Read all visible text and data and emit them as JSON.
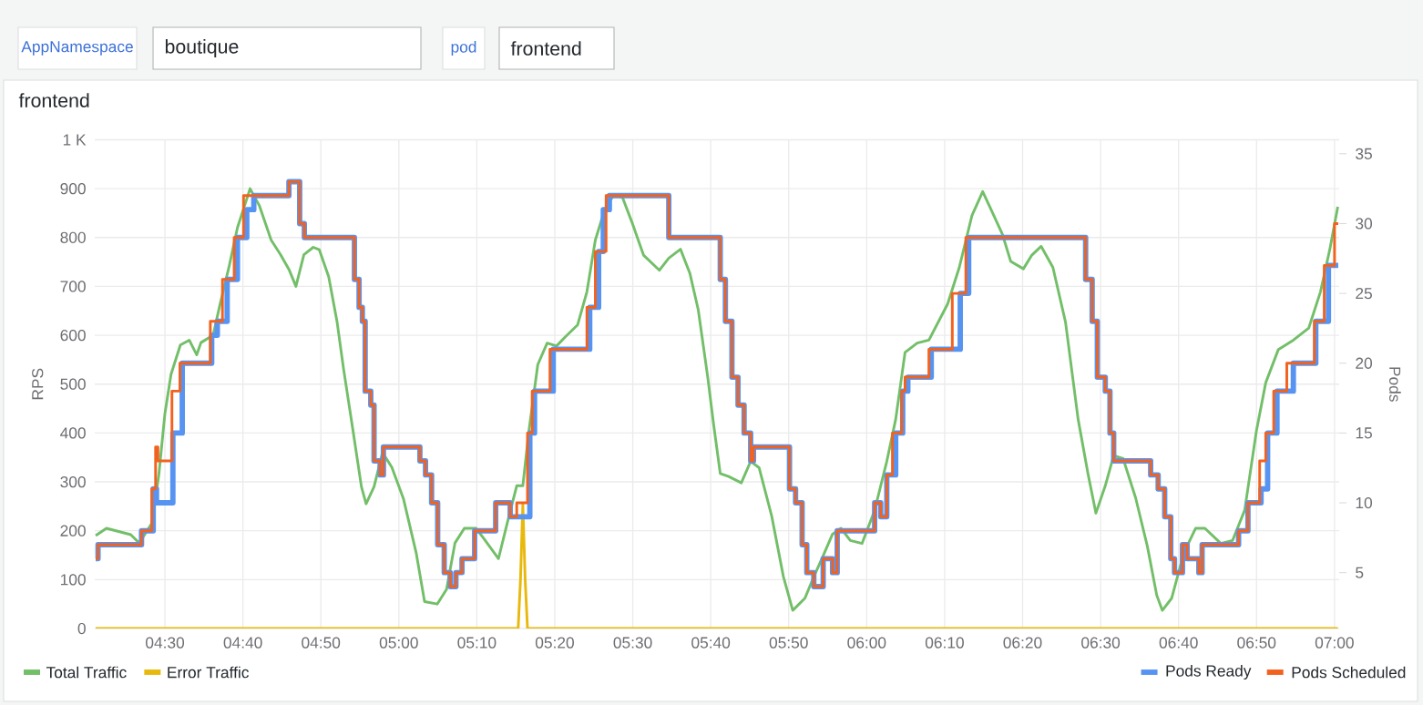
{
  "chart_data": {
    "type": "line",
    "title": "frontend",
    "ylabel": "RPS",
    "y2label": "Pods",
    "annotations": [
      "AppNamespace",
      "boutique",
      "pod",
      "frontend"
    ],
    "xlim": [
      4.35,
      7.01
    ],
    "xticks": [
      {
        "value": 4.5,
        "label": "04:30"
      },
      {
        "value": 4.6667,
        "label": "04:40"
      },
      {
        "value": 4.8333,
        "label": "04:50"
      },
      {
        "value": 5,
        "label": "05:00"
      },
      {
        "value": 5.1667,
        "label": "05:10"
      },
      {
        "value": 5.3333,
        "label": "05:20"
      },
      {
        "value": 5.5,
        "label": "05:30"
      },
      {
        "value": 5.6667,
        "label": "05:40"
      },
      {
        "value": 5.8333,
        "label": "05:50"
      },
      {
        "value": 6,
        "label": "06:00"
      },
      {
        "value": 6.1667,
        "label": "06:10"
      },
      {
        "value": 6.3333,
        "label": "06:20"
      },
      {
        "value": 6.5,
        "label": "06:30"
      },
      {
        "value": 6.6667,
        "label": "06:40"
      },
      {
        "value": 6.8333,
        "label": "06:50"
      },
      {
        "value": 7,
        "label": "07:00"
      }
    ],
    "ylim": [
      0,
      1000
    ],
    "yticks": [
      0,
      100,
      200,
      300,
      400,
      500,
      600,
      700,
      800,
      900,
      {
        "value": 1000,
        "label": "1 K"
      }
    ],
    "y2lim": [
      1,
      36
    ],
    "y2ticks": [
      5,
      10,
      15,
      20,
      25,
      30,
      35
    ],
    "grid": true,
    "legend": "bottom",
    "series": [
      {
        "name": "Total Traffic",
        "color": "#73bf69",
        "x": [
          4.352,
          4.375,
          4.427,
          4.445,
          4.472,
          4.487,
          4.5,
          4.513,
          4.533,
          4.552,
          4.568,
          4.577,
          4.603,
          4.617,
          4.637,
          4.655,
          4.682,
          4.702,
          4.727,
          4.747,
          4.765,
          4.78,
          4.797,
          4.817,
          4.83,
          4.85,
          4.868,
          4.882,
          4.902,
          4.92,
          4.93,
          4.947,
          4.965,
          4.985,
          5.01,
          5.037,
          5.055,
          5.082,
          5.102,
          5.12,
          5.14,
          5.165,
          5.18,
          5.213,
          5.232,
          5.252,
          5.265,
          5.278,
          5.297,
          5.317,
          5.337,
          5.355,
          5.382,
          5.402,
          5.42,
          5.44,
          5.46,
          5.478,
          5.498,
          5.523,
          5.557,
          5.577,
          5.602,
          5.622,
          5.64,
          5.66,
          5.673,
          5.687,
          5.705,
          5.732,
          5.752,
          5.77,
          5.797,
          5.822,
          5.842,
          5.868,
          5.887,
          5.907,
          5.927,
          5.945,
          5.965,
          5.99,
          6.017,
          6.043,
          6.062,
          6.082,
          6.108,
          6.133,
          6.173,
          6.198,
          6.225,
          6.248,
          6.263,
          6.29,
          6.308,
          6.335,
          6.353,
          6.373,
          6.398,
          6.425,
          6.452,
          6.473,
          6.49,
          6.51,
          6.528,
          6.548,
          6.575,
          6.6,
          6.62,
          6.632,
          6.652,
          6.678,
          6.703,
          6.723,
          6.757,
          6.782,
          6.808,
          6.833,
          6.853,
          6.88,
          6.912,
          6.945,
          6.97,
          6.99,
          7.007
        ],
        "values": [
          190,
          205,
          192,
          175,
          215,
          315,
          440,
          520,
          580,
          590,
          560,
          585,
          600,
          660,
          740,
          820,
          900,
          865,
          795,
          765,
          735,
          700,
          765,
          780,
          775,
          720,
          627,
          530,
          405,
          290,
          255,
          290,
          360,
          330,
          265,
          155,
          55,
          50,
          80,
          175,
          205,
          205,
          186,
          143,
          217,
          292,
          292,
          404,
          540,
          584,
          578,
          596,
          621,
          689,
          795,
          857,
          888,
          882,
          832,
          764,
          733,
          758,
          776,
          727,
          652,
          516,
          416,
          317,
          311,
          298,
          342,
          329,
          230,
          106,
          37,
          62,
          106,
          149,
          193,
          205,
          180,
          174,
          242,
          342,
          428,
          565,
          584,
          590,
          664,
          739,
          845,
          894,
          863,
          807,
          751,
          736,
          764,
          782,
          739,
          627,
          428,
          317,
          236,
          292,
          354,
          348,
          267,
          168,
          68,
          37,
          62,
          155,
          205,
          205,
          174,
          180,
          242,
          404,
          503,
          571,
          590,
          615,
          689,
          776,
          863
        ]
      },
      {
        "name": "Error Traffic",
        "color": "#e8b90c",
        "x": [
          4.352,
          5.255,
          5.26,
          5.265,
          5.27,
          5.275,
          7.007
        ],
        "values": [
          0,
          0,
          100,
          255,
          100,
          0,
          0
        ]
      },
      {
        "name": "Pods Ready",
        "color": "#5794f2",
        "type": "step",
        "axis": "y2",
        "x": [
          4.352,
          4.357,
          4.45,
          4.475,
          4.482,
          4.517,
          4.537,
          4.6,
          4.612,
          4.633,
          4.655,
          4.675,
          4.69,
          4.765,
          4.788,
          4.798,
          4.905,
          4.915,
          4.922,
          4.928,
          4.94,
          4.947,
          4.96,
          4.967,
          5.045,
          5.057,
          5.07,
          5.083,
          5.097,
          5.11,
          5.122,
          5.135,
          5.162,
          5.207,
          5.238,
          5.28,
          5.29,
          5.33,
          5.408,
          5.427,
          5.437,
          5.45,
          5.577,
          5.687,
          5.698,
          5.712,
          5.725,
          5.738,
          5.752,
          5.758,
          5.835,
          5.848,
          5.862,
          5.872,
          5.887,
          5.907,
          5.927,
          5.937,
          6.017,
          6.03,
          6.043,
          6.062,
          6.077,
          6.088,
          6.138,
          6.2,
          6.218,
          6.468,
          6.482,
          6.493,
          6.51,
          6.52,
          6.528,
          6.607,
          6.623,
          6.637,
          6.65,
          6.658,
          6.675,
          6.685,
          6.71,
          6.717,
          6.795,
          6.815,
          6.843,
          6.857,
          6.877,
          6.912,
          6.96,
          6.987,
          7.008
        ],
        "values": [
          6,
          7,
          8,
          11,
          10,
          15,
          20,
          22,
          23,
          26,
          29,
          31,
          32,
          33,
          30,
          29,
          26,
          24,
          23,
          18,
          17,
          13,
          12,
          14,
          13,
          12,
          10,
          7,
          5,
          4,
          5,
          6,
          8,
          10,
          9,
          15,
          18,
          21,
          24,
          28,
          31,
          32,
          29,
          26,
          23,
          19,
          17,
          15,
          13,
          14,
          11,
          10,
          7,
          5,
          4,
          6,
          5,
          8,
          10,
          9,
          12,
          15,
          18,
          19,
          21,
          25,
          29,
          26,
          23,
          19,
          18,
          15,
          13,
          12,
          11,
          9,
          6,
          5,
          7,
          6,
          5,
          7,
          8,
          10,
          11,
          15,
          18,
          20,
          23,
          27,
          27
        ]
      },
      {
        "name": "Pods Scheduled",
        "color": "#f2621f",
        "type": "step",
        "axis": "y2",
        "x": [
          4.352,
          4.357,
          4.45,
          4.472,
          4.48,
          4.485,
          4.515,
          4.532,
          4.597,
          4.623,
          4.648,
          4.668,
          4.765,
          4.788,
          4.798,
          4.905,
          4.915,
          4.922,
          4.928,
          4.94,
          4.947,
          4.96,
          4.967,
          5.045,
          5.057,
          5.07,
          5.083,
          5.097,
          5.11,
          5.122,
          5.135,
          5.162,
          5.207,
          5.238,
          5.252,
          5.275,
          5.285,
          5.323,
          5.402,
          5.42,
          5.443,
          5.577,
          5.687,
          5.698,
          5.712,
          5.725,
          5.738,
          5.752,
          5.758,
          5.835,
          5.848,
          5.862,
          5.872,
          5.887,
          5.907,
          5.927,
          5.937,
          6.017,
          6.03,
          6.043,
          6.055,
          6.075,
          6.082,
          6.133,
          6.183,
          6.212,
          6.468,
          6.482,
          6.493,
          6.51,
          6.52,
          6.528,
          6.607,
          6.623,
          6.637,
          6.65,
          6.658,
          6.675,
          6.685,
          6.71,
          6.717,
          6.795,
          6.815,
          6.84,
          6.853,
          6.87,
          6.898,
          6.957,
          6.978,
          7.0,
          7.008
        ],
        "values": [
          6,
          7,
          8,
          11,
          14,
          13,
          18,
          20,
          23,
          26,
          29,
          32,
          33,
          30,
          29,
          26,
          24,
          23,
          18,
          17,
          13,
          12,
          14,
          13,
          12,
          10,
          7,
          5,
          4,
          5,
          6,
          8,
          10,
          9,
          10,
          15,
          18,
          21,
          24,
          28,
          32,
          29,
          26,
          23,
          19,
          17,
          15,
          13,
          14,
          11,
          10,
          7,
          5,
          4,
          6,
          5,
          8,
          10,
          9,
          12,
          15,
          18,
          19,
          21,
          25,
          29,
          26,
          23,
          19,
          18,
          15,
          13,
          12,
          11,
          9,
          6,
          5,
          7,
          6,
          5,
          7,
          8,
          10,
          13,
          15,
          18,
          20,
          23,
          27,
          30,
          30
        ]
      }
    ]
  }
}
